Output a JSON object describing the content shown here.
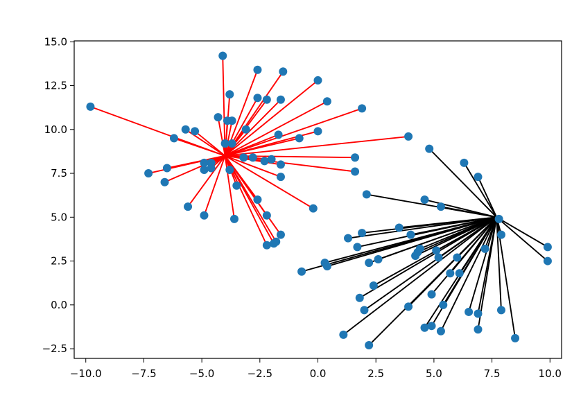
{
  "chart_data": {
    "type": "scatter",
    "title": "",
    "xlabel": "",
    "ylabel": "",
    "xlim": [
      -10.5,
      10.5
    ],
    "ylim": [
      -3.05,
      15.05
    ],
    "x_ticks": [
      -10.0,
      -7.5,
      -5.0,
      -2.5,
      0.0,
      2.5,
      5.0,
      7.5,
      10.0
    ],
    "x_tick_labels": [
      "−10.0",
      "−7.5",
      "−5.0",
      "−2.5",
      "0.0",
      "2.5",
      "5.0",
      "7.5",
      "10.0"
    ],
    "y_ticks": [
      -2.5,
      0.0,
      2.5,
      5.0,
      7.5,
      10.0,
      12.5,
      15.0
    ],
    "y_tick_labels": [
      "−2.5",
      "0.0",
      "2.5",
      "5.0",
      "7.5",
      "10.0",
      "12.5",
      "15.0"
    ],
    "grid": false,
    "marker_color": "#1f77b4",
    "series": [
      {
        "center": [
          -4.0,
          8.5
        ],
        "line_color": "#ff0000",
        "points": [
          [
            -9.8,
            11.3
          ],
          [
            -4.1,
            14.2
          ],
          [
            -2.6,
            13.4
          ],
          [
            -1.5,
            13.3
          ],
          [
            0.0,
            12.8
          ],
          [
            -3.8,
            12.0
          ],
          [
            -2.6,
            11.8
          ],
          [
            -2.2,
            11.7
          ],
          [
            -1.6,
            11.7
          ],
          [
            0.4,
            11.6
          ],
          [
            1.9,
            11.2
          ],
          [
            -4.3,
            10.7
          ],
          [
            -3.9,
            10.5
          ],
          [
            -3.7,
            10.5
          ],
          [
            -5.7,
            10.0
          ],
          [
            -5.3,
            9.9
          ],
          [
            -3.1,
            10.0
          ],
          [
            -1.7,
            9.7
          ],
          [
            0.0,
            9.9
          ],
          [
            -6.2,
            9.5
          ],
          [
            -0.8,
            9.5
          ],
          [
            3.9,
            9.6
          ],
          [
            -4.0,
            9.2
          ],
          [
            -3.7,
            9.2
          ],
          [
            -2.8,
            8.4
          ],
          [
            -2.3,
            8.2
          ],
          [
            -2.0,
            8.3
          ],
          [
            1.6,
            8.4
          ],
          [
            -4.9,
            8.1
          ],
          [
            -4.6,
            8.1
          ],
          [
            -3.2,
            8.4
          ],
          [
            -6.5,
            7.8
          ],
          [
            -4.9,
            7.7
          ],
          [
            -4.6,
            7.8
          ],
          [
            -3.8,
            7.7
          ],
          [
            -1.6,
            8.0
          ],
          [
            -7.3,
            7.5
          ],
          [
            1.6,
            7.6
          ],
          [
            -6.6,
            7.0
          ],
          [
            -3.5,
            6.8
          ],
          [
            -1.6,
            7.3
          ],
          [
            -2.6,
            6.0
          ],
          [
            -5.6,
            5.6
          ],
          [
            -0.2,
            5.5
          ],
          [
            -4.9,
            5.1
          ],
          [
            -3.6,
            4.9
          ],
          [
            -2.2,
            5.1
          ],
          [
            -1.6,
            4.0
          ],
          [
            -1.8,
            3.6
          ],
          [
            -1.9,
            3.5
          ],
          [
            -2.2,
            3.4
          ]
        ]
      },
      {
        "center": [
          7.7,
          5.0
        ],
        "line_color": "#000000",
        "points": [
          [
            4.8,
            8.9
          ],
          [
            6.3,
            8.1
          ],
          [
            6.9,
            7.3
          ],
          [
            2.1,
            6.3
          ],
          [
            4.6,
            6.0
          ],
          [
            5.3,
            5.6
          ],
          [
            7.8,
            4.9
          ],
          [
            3.5,
            4.4
          ],
          [
            1.9,
            4.1
          ],
          [
            4.0,
            4.0
          ],
          [
            7.9,
            4.0
          ],
          [
            1.3,
            3.8
          ],
          [
            9.9,
            3.3
          ],
          [
            1.7,
            3.3
          ],
          [
            4.4,
            3.2
          ],
          [
            5.1,
            3.1
          ],
          [
            7.2,
            3.2
          ],
          [
            4.3,
            3.0
          ],
          [
            4.2,
            2.8
          ],
          [
            5.2,
            2.7
          ],
          [
            2.6,
            2.6
          ],
          [
            6.0,
            2.7
          ],
          [
            2.2,
            2.4
          ],
          [
            9.9,
            2.5
          ],
          [
            0.3,
            2.4
          ],
          [
            0.4,
            2.2
          ],
          [
            -0.7,
            1.9
          ],
          [
            5.7,
            1.8
          ],
          [
            6.1,
            1.8
          ],
          [
            2.4,
            1.1
          ],
          [
            4.9,
            0.6
          ],
          [
            1.8,
            0.4
          ],
          [
            3.9,
            -0.1
          ],
          [
            5.4,
            0.0
          ],
          [
            2.0,
            -0.3
          ],
          [
            6.5,
            -0.4
          ],
          [
            6.9,
            -0.5
          ],
          [
            7.9,
            -0.3
          ],
          [
            4.6,
            -1.3
          ],
          [
            4.9,
            -1.2
          ],
          [
            5.3,
            -1.5
          ],
          [
            6.9,
            -1.4
          ],
          [
            1.1,
            -1.7
          ],
          [
            8.5,
            -1.9
          ],
          [
            2.2,
            -2.3
          ]
        ]
      }
    ]
  }
}
